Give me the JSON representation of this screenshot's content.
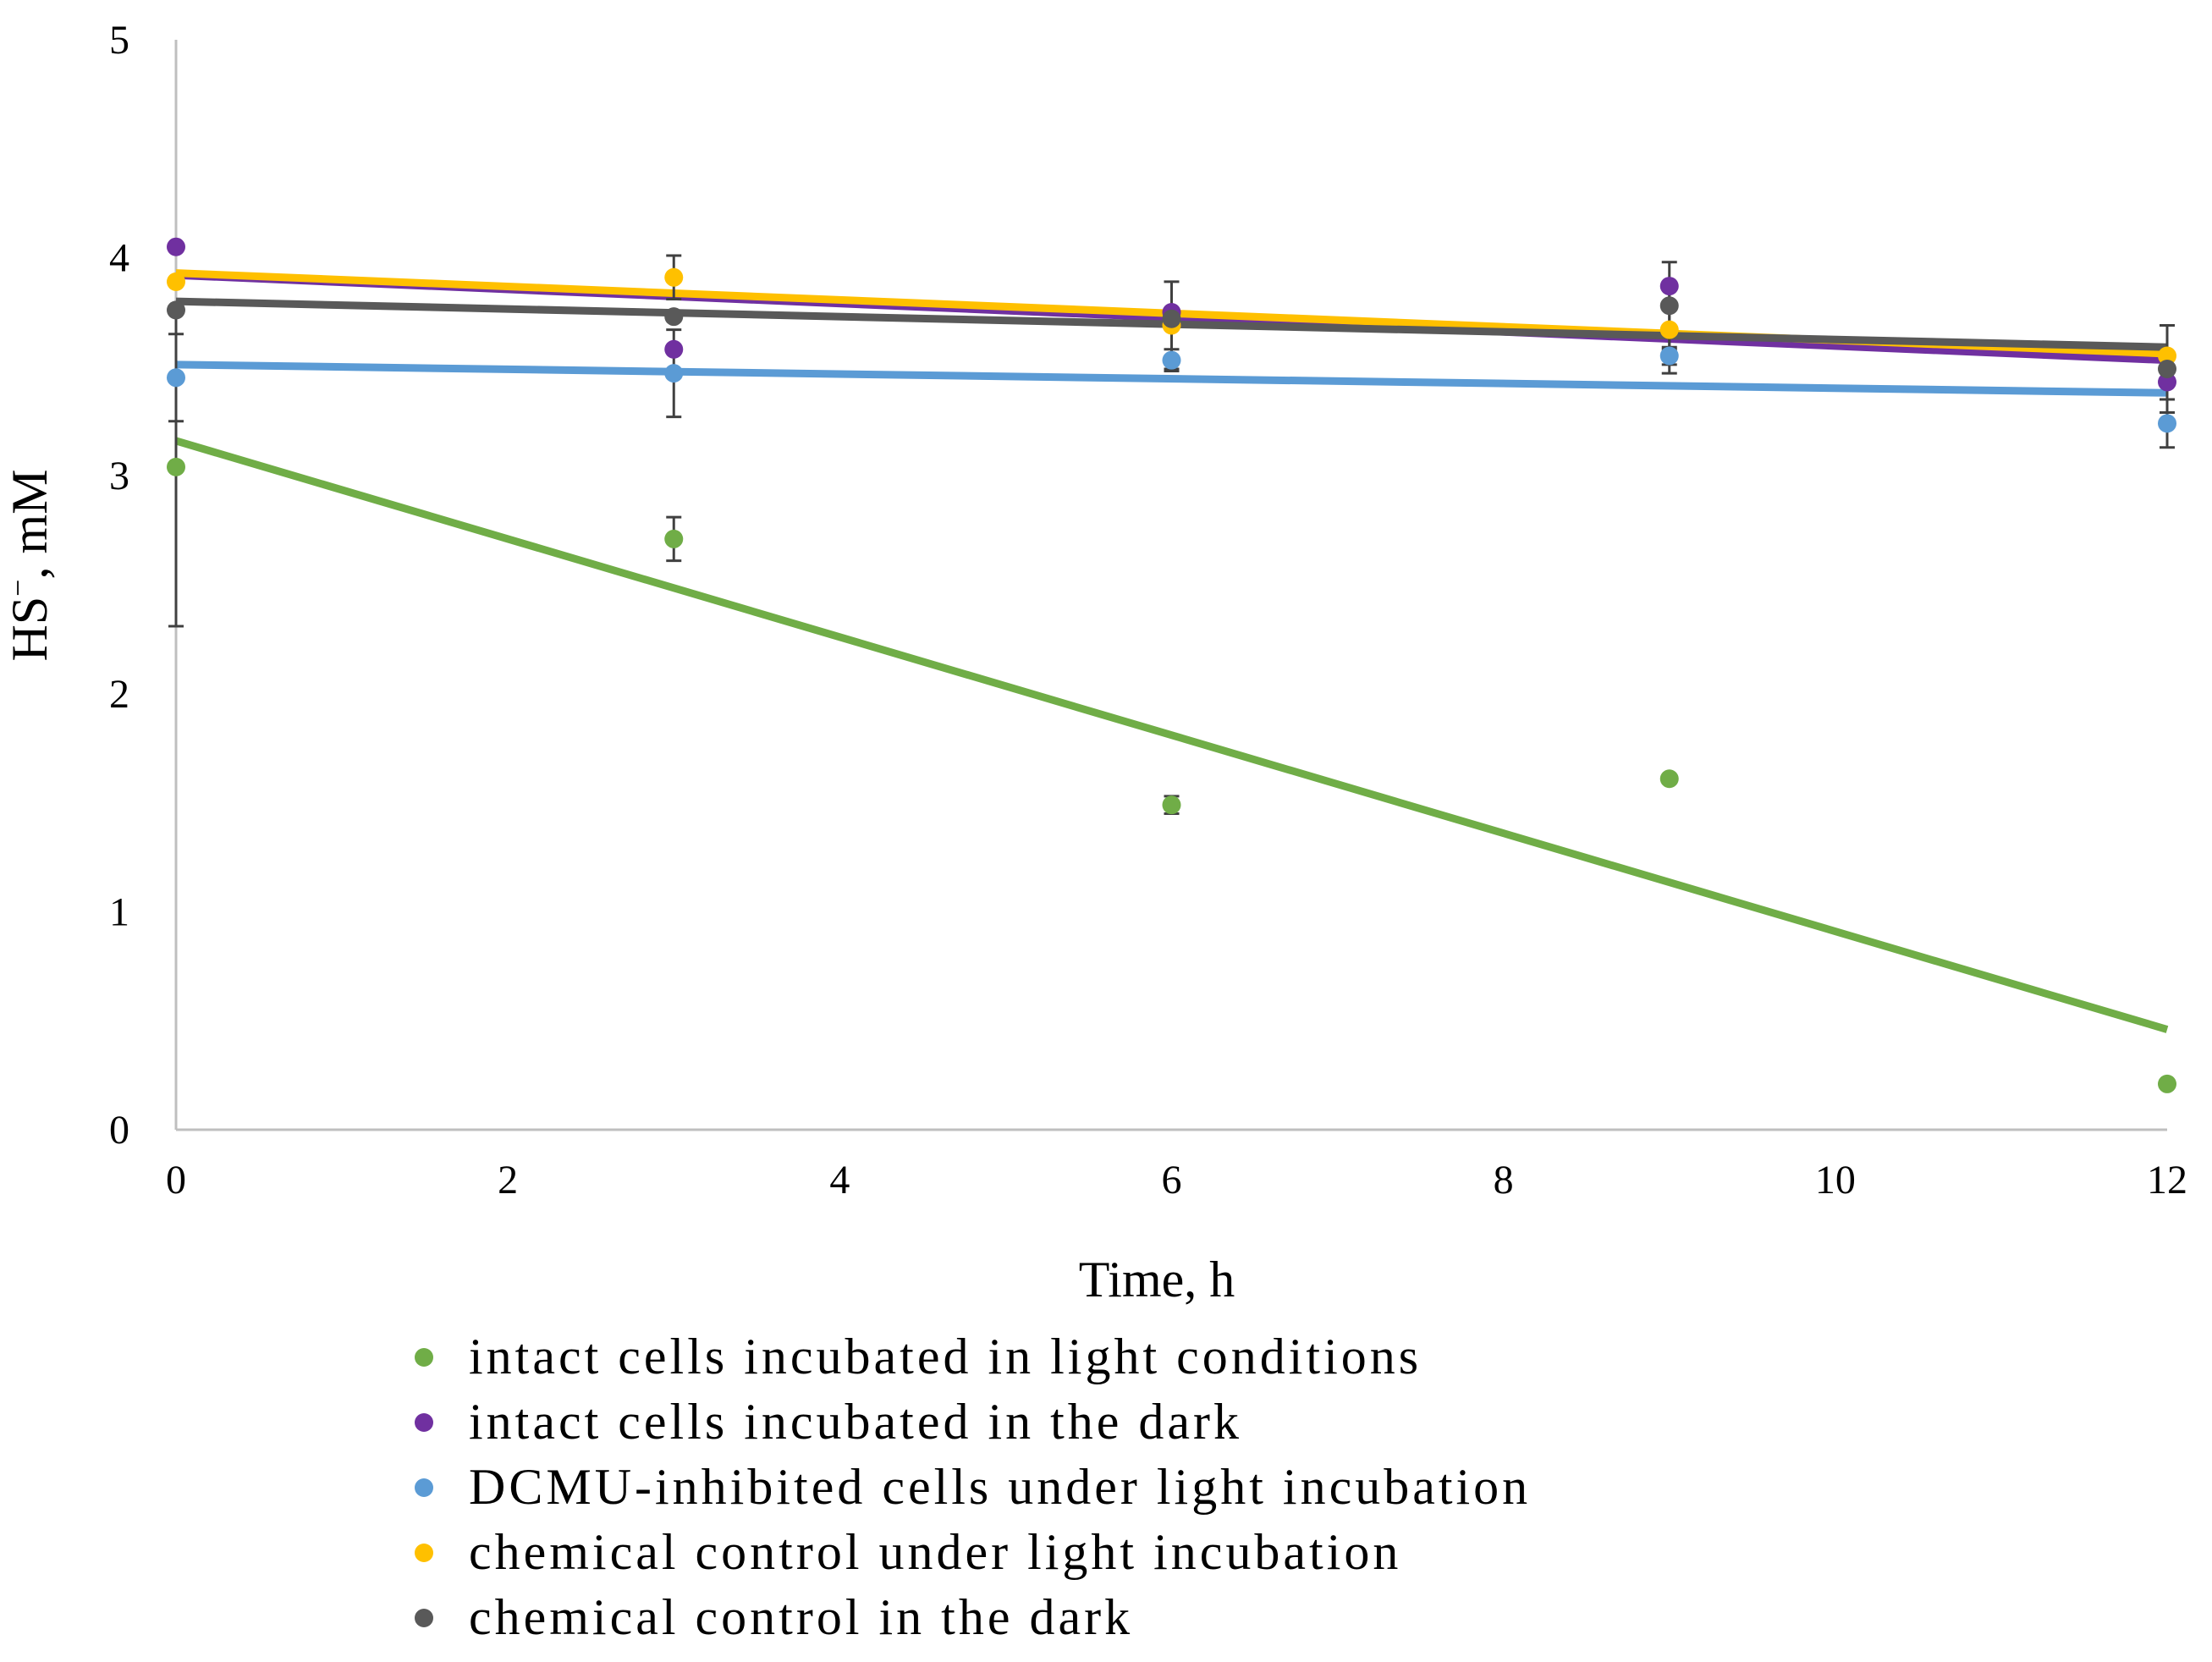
{
  "chart_data": {
    "type": "scatter",
    "title": "",
    "xlabel": "Time, h",
    "ylabel": {
      "base": "HS",
      "superscript": "−",
      "suffix": ", mM"
    },
    "xlim": [
      0,
      12
    ],
    "ylim": [
      0,
      5
    ],
    "x_ticks": [
      "0",
      "2",
      "4",
      "6",
      "8",
      "10",
      "12"
    ],
    "y_ticks": [
      "0",
      "1",
      "2",
      "3",
      "4",
      "5"
    ],
    "grid": false,
    "legend_position": "bottom",
    "x": [
      0,
      3,
      6,
      9,
      12
    ],
    "series": [
      {
        "name": "intact cells incubated in light conditions",
        "color": "#70AD47",
        "values": [
          3.04,
          2.71,
          1.49,
          1.61,
          0.21
        ],
        "errors": [
          0.73,
          0.1,
          0.04,
          0,
          0
        ],
        "trend": [
          3.16,
          0.46
        ]
      },
      {
        "name": "intact cells incubated in the dark",
        "color": "#7030A0",
        "values": [
          4.05,
          3.58,
          3.75,
          3.87,
          3.43
        ],
        "errors": [
          0,
          0,
          0,
          0,
          0
        ],
        "trend": [
          3.92,
          3.53
        ]
      },
      {
        "name": "DCMU-inhibited cells under light incubation",
        "color": "#5B9BD5",
        "values": [
          3.45,
          3.47,
          3.53,
          3.55,
          3.24
        ],
        "errors": [
          0.2,
          0.2,
          0.05,
          0.04,
          0.11
        ],
        "trend": [
          3.51,
          3.38
        ]
      },
      {
        "name": "chemical control under light incubation",
        "color": "#FFC000",
        "values": [
          3.89,
          3.91,
          3.69,
          3.67,
          3.55
        ],
        "errors": [
          0,
          0.1,
          0.2,
          0.2,
          0
        ],
        "trend": [
          3.93,
          3.56
        ]
      },
      {
        "name": "chemical control in the dark",
        "color": "#595959",
        "values": [
          3.76,
          3.73,
          3.72,
          3.78,
          3.49
        ],
        "errors": [
          0,
          0,
          0,
          0.2,
          0.2
        ],
        "trend": [
          3.8,
          3.59
        ]
      }
    ]
  }
}
